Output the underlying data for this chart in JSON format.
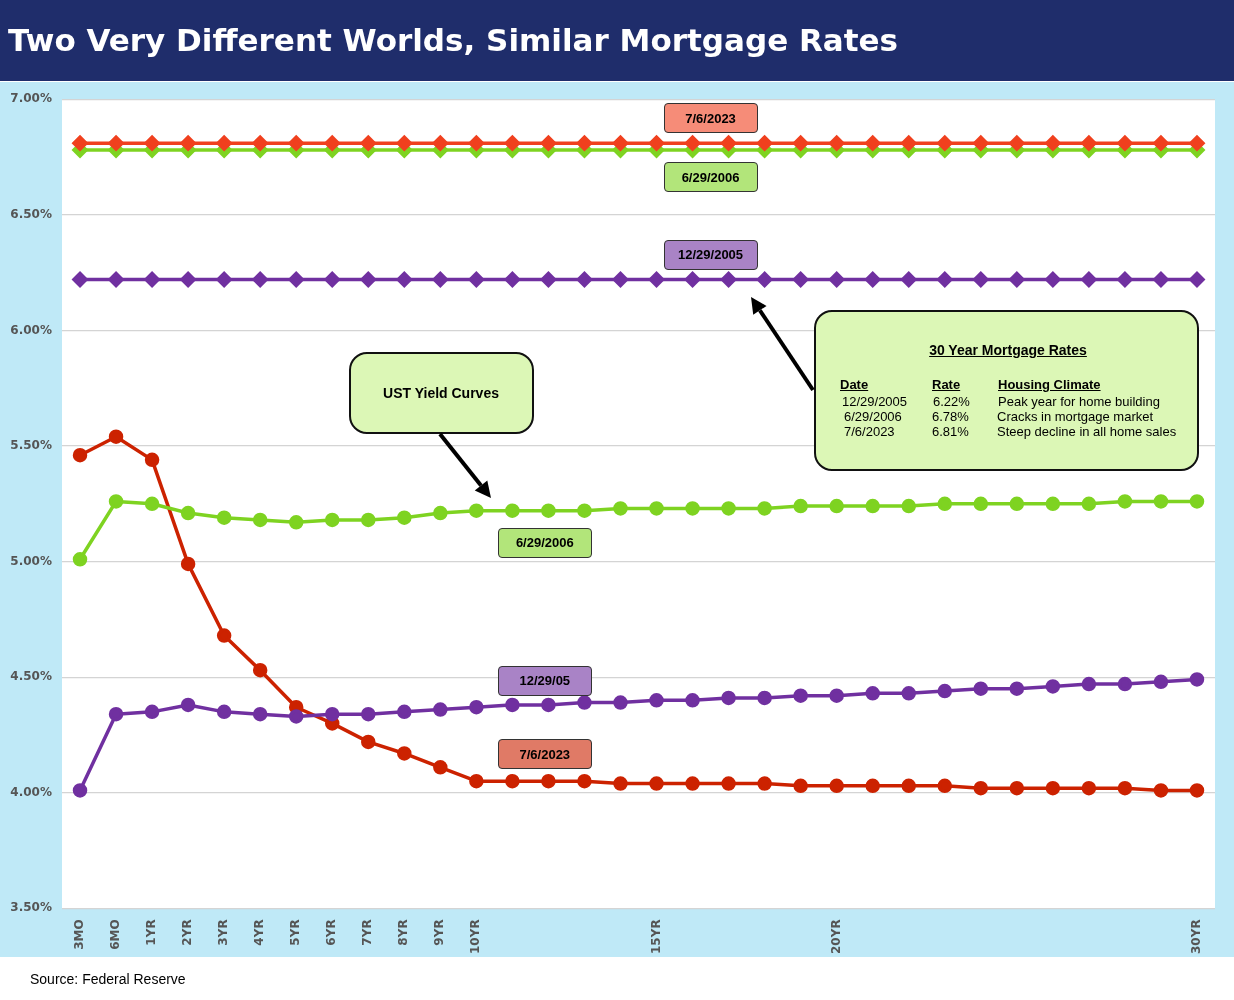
{
  "chart_data": {
    "type": "line",
    "title": "Two Very Different Worlds, Similar Mortgage Rates",
    "categories": [
      "3MO",
      "6MO",
      "1YR",
      "2YR",
      "3YR",
      "4YR",
      "5YR",
      "6YR",
      "7YR",
      "8YR",
      "9YR",
      "10YR",
      null,
      null,
      null,
      null,
      "15YR",
      null,
      null,
      null,
      null,
      "20YR",
      null,
      null,
      null,
      null,
      null,
      null,
      null,
      null,
      null,
      "30YR"
    ],
    "ylim": [
      3.5,
      7
    ],
    "yticks": [
      {
        "value": 3.5,
        "label": "3.50%"
      },
      {
        "value": 4,
        "label": "4.00%"
      },
      {
        "value": 4.5,
        "label": "4.50%"
      },
      {
        "value": 5,
        "label": "5.00%"
      },
      {
        "value": 5.5,
        "label": "5.50%"
      },
      {
        "value": 6,
        "label": "6.00%"
      },
      {
        "value": 6.5,
        "label": "6.50%"
      },
      {
        "value": 7,
        "label": "7.00%"
      }
    ],
    "grid": "y",
    "legend": false,
    "series": [
      {
        "name": "7/6/2023",
        "color": "#f0401e",
        "marker": "diamond",
        "values": [
          6.81,
          6.81,
          6.81,
          6.81,
          6.81,
          6.81,
          6.81,
          6.81,
          6.81,
          6.81,
          6.81,
          6.81,
          6.81,
          6.81,
          6.81,
          6.81,
          6.81,
          6.81,
          6.81,
          6.81,
          6.81,
          6.81,
          6.81,
          6.81,
          6.81,
          6.81,
          6.81,
          6.81,
          6.81,
          6.81,
          6.81,
          6.81
        ]
      },
      {
        "name": "6/29/2006",
        "color": "#7ed321",
        "marker": "diamond",
        "values": [
          6.78,
          6.78,
          6.78,
          6.78,
          6.78,
          6.78,
          6.78,
          6.78,
          6.78,
          6.78,
          6.78,
          6.78,
          6.78,
          6.78,
          6.78,
          6.78,
          6.78,
          6.78,
          6.78,
          6.78,
          6.78,
          6.78,
          6.78,
          6.78,
          6.78,
          6.78,
          6.78,
          6.78,
          6.78,
          6.78,
          6.78,
          6.78
        ]
      },
      {
        "name": "12/29/2005",
        "color": "#7030a0",
        "marker": "diamond",
        "values": [
          6.22,
          6.22,
          6.22,
          6.22,
          6.22,
          6.22,
          6.22,
          6.22,
          6.22,
          6.22,
          6.22,
          6.22,
          6.22,
          6.22,
          6.22,
          6.22,
          6.22,
          6.22,
          6.22,
          6.22,
          6.22,
          6.22,
          6.22,
          6.22,
          6.22,
          6.22,
          6.22,
          6.22,
          6.22,
          6.22,
          6.22,
          6.22
        ]
      },
      {
        "name": "6/29/2006",
        "color": "#7ed321",
        "marker": "circle",
        "values": [
          5.01,
          5.26,
          5.25,
          5.21,
          5.19,
          5.18,
          5.17,
          5.18,
          5.18,
          5.19,
          5.21,
          5.22,
          5.22,
          5.22,
          5.22,
          5.23,
          5.23,
          5.23,
          5.23,
          5.23,
          5.24,
          5.24,
          5.24,
          5.24,
          5.25,
          5.25,
          5.25,
          5.25,
          5.25,
          5.26,
          5.26,
          5.26
        ]
      },
      {
        "name": "12/29/05",
        "color": "#7030a0",
        "marker": "circle",
        "values": [
          4.01,
          4.34,
          4.35,
          4.38,
          4.35,
          4.34,
          4.33,
          4.34,
          4.34,
          4.35,
          4.36,
          4.37,
          4.38,
          4.38,
          4.39,
          4.39,
          4.4,
          4.4,
          4.41,
          4.41,
          4.42,
          4.42,
          4.43,
          4.43,
          4.44,
          4.45,
          4.45,
          4.46,
          4.47,
          4.47,
          4.48,
          4.49
        ]
      },
      {
        "name": "7/6/2023",
        "color": "#cc2200",
        "marker": "circle",
        "values": [
          5.46,
          5.54,
          5.44,
          4.99,
          4.68,
          4.53,
          4.37,
          4.3,
          4.22,
          4.17,
          4.11,
          4.05,
          4.05,
          4.05,
          4.05,
          4.04,
          4.04,
          4.04,
          4.04,
          4.04,
          4.03,
          4.03,
          4.03,
          4.03,
          4.03,
          4.02,
          4.02,
          4.02,
          4.02,
          4.02,
          4.01,
          4.01
        ]
      }
    ],
    "annotations": [
      "UST Yield Curves",
      "30 Year Mortgage Rates",
      "Date",
      "Rate",
      "Housing Climate",
      "12/29/2005",
      "6.22%",
      "Peak year for home building",
      "6/29/2006",
      "6.78%",
      "Cracks in mortgage market",
      "7/6/2023",
      "6.81%",
      "Steep decline in all home sales",
      "Source: Federal Reserve"
    ]
  }
}
